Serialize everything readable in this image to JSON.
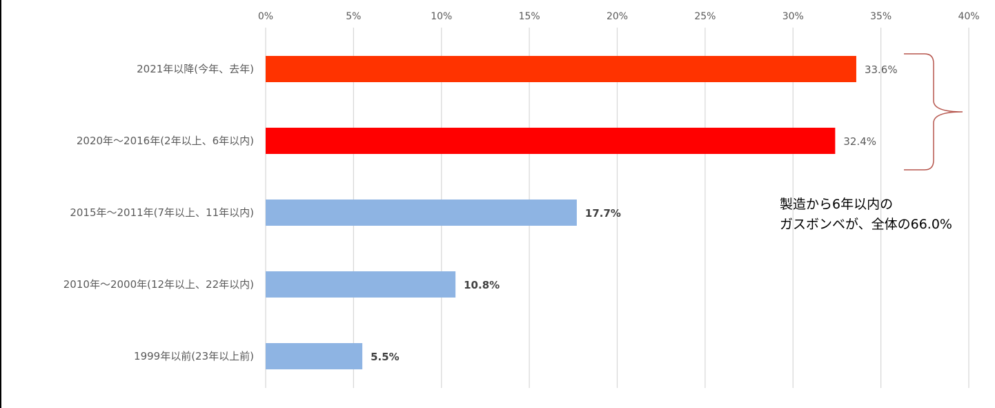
{
  "chart_data": {
    "type": "bar",
    "orientation": "horizontal",
    "categories": [
      "2021年以降(今年、去年)",
      "2020年～2016年(2年以上、6年以内)",
      "2015年～2011年(7年以上、11年以内)",
      "2010年～2000年(12年以上、22年以内)",
      "1999年以前(23年以上前)"
    ],
    "values": [
      33.6,
      32.4,
      17.7,
      10.8,
      5.5
    ],
    "data_labels": [
      "33.6%",
      "32.4%",
      "17.7%",
      "10.8%",
      "5.5%"
    ],
    "bar_colors": [
      "#FF3300",
      "#FF0000",
      "#8EB4E3",
      "#8EB4E3",
      "#8EB4E3"
    ],
    "x_ticks": [
      "0%",
      "5%",
      "10%",
      "15%",
      "20%",
      "25%",
      "30%",
      "35%",
      "40%"
    ],
    "xlim": [
      0,
      40
    ],
    "x_axis_position": "top",
    "grid": true,
    "title": "",
    "xlabel": "",
    "ylabel": "",
    "annotation": {
      "lines": [
        "製造から6年以内の",
        "ガスボンベが、全体の66.0%"
      ],
      "bracket_color": "#B5544B"
    }
  }
}
